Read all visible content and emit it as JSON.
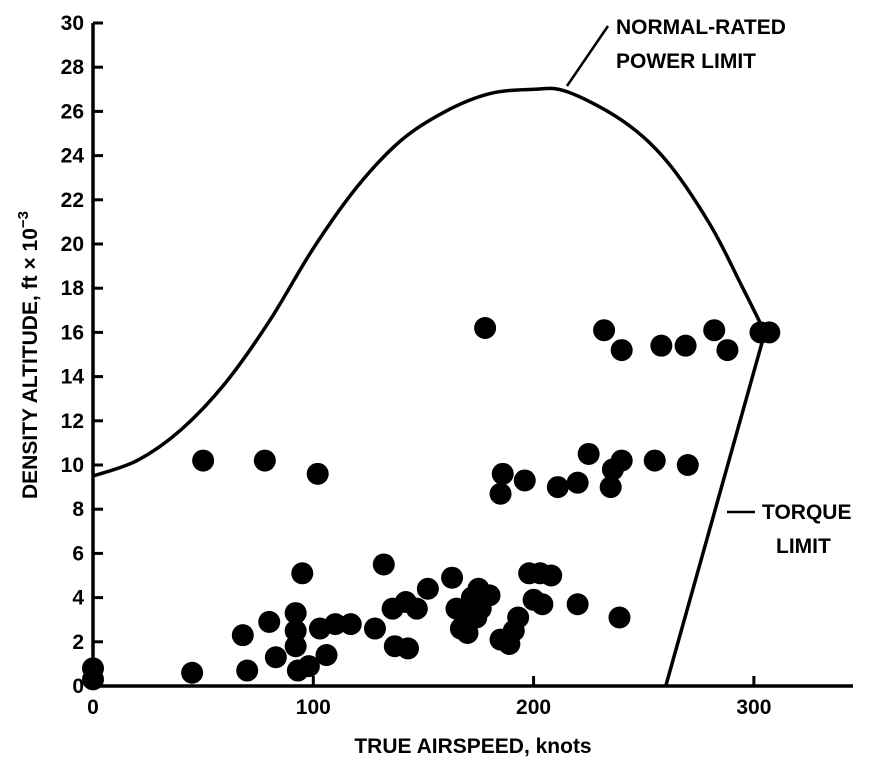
{
  "chart_data": {
    "type": "scatter",
    "xlabel": "TRUE AIRSPEED, knots",
    "ylabel": "DENSITY ALTITUDE, ft × 10",
    "ylabel_exponent": "−3",
    "xlim": [
      0,
      345
    ],
    "ylim": [
      0,
      30
    ],
    "xticks": [
      0,
      100,
      200,
      300
    ],
    "xtick_labels": [
      "0",
      "100",
      "200",
      "300"
    ],
    "yticks": [
      0,
      2,
      4,
      6,
      8,
      10,
      12,
      14,
      16,
      18,
      20,
      22,
      24,
      26,
      28,
      30
    ],
    "ytick_labels": [
      "0",
      "2",
      "4",
      "6",
      "8",
      "10",
      "12",
      "14",
      "16",
      "18",
      "20",
      "22",
      "24",
      "26",
      "28",
      "30"
    ],
    "grid": false,
    "annotations": {
      "power_limit_line1": "NORMAL-RATED",
      "power_limit_line2": "POWER LIMIT",
      "torque_limit_line1": "TORQUE",
      "torque_limit_line2": "LIMIT"
    },
    "power_limit_curve": [
      [
        0,
        9.5
      ],
      [
        20,
        10.2
      ],
      [
        40,
        11.6
      ],
      [
        60,
        13.7
      ],
      [
        80,
        16.5
      ],
      [
        100,
        19.8
      ],
      [
        120,
        22.6
      ],
      [
        140,
        24.7
      ],
      [
        160,
        26.0
      ],
      [
        180,
        26.8
      ],
      [
        200,
        27.0
      ],
      [
        215,
        26.9
      ],
      [
        240,
        25.6
      ],
      [
        260,
        23.8
      ],
      [
        280,
        20.9
      ],
      [
        295,
        18.0
      ],
      [
        305,
        16.0
      ]
    ],
    "torque_limit_line": [
      [
        305,
        16.0
      ],
      [
        260,
        0
      ]
    ],
    "points": [
      {
        "x": 0,
        "y": 0.3
      },
      {
        "x": 0,
        "y": 0.8
      },
      {
        "x": 45,
        "y": 0.6
      },
      {
        "x": 50,
        "y": 10.2
      },
      {
        "x": 68,
        "y": 2.3
      },
      {
        "x": 70,
        "y": 0.7
      },
      {
        "x": 78,
        "y": 10.2
      },
      {
        "x": 80,
        "y": 2.9
      },
      {
        "x": 83,
        "y": 1.3
      },
      {
        "x": 92,
        "y": 3.3
      },
      {
        "x": 92,
        "y": 2.5
      },
      {
        "x": 92,
        "y": 1.8
      },
      {
        "x": 93,
        "y": 0.7
      },
      {
        "x": 95,
        "y": 5.1
      },
      {
        "x": 98,
        "y": 0.9
      },
      {
        "x": 102,
        "y": 9.6
      },
      {
        "x": 103,
        "y": 2.6
      },
      {
        "x": 106,
        "y": 1.4
      },
      {
        "x": 110,
        "y": 2.8
      },
      {
        "x": 117,
        "y": 2.8
      },
      {
        "x": 128,
        "y": 2.6
      },
      {
        "x": 132,
        "y": 5.5
      },
      {
        "x": 136,
        "y": 3.5
      },
      {
        "x": 137,
        "y": 1.8
      },
      {
        "x": 142,
        "y": 3.8
      },
      {
        "x": 143,
        "y": 1.7
      },
      {
        "x": 147,
        "y": 3.5
      },
      {
        "x": 152,
        "y": 4.4
      },
      {
        "x": 163,
        "y": 4.9
      },
      {
        "x": 165,
        "y": 3.5
      },
      {
        "x": 167,
        "y": 2.6
      },
      {
        "x": 169,
        "y": 3.2
      },
      {
        "x": 170,
        "y": 2.4
      },
      {
        "x": 172,
        "y": 4.0
      },
      {
        "x": 174,
        "y": 3.1
      },
      {
        "x": 175,
        "y": 4.4
      },
      {
        "x": 176,
        "y": 3.5
      },
      {
        "x": 178,
        "y": 16.2
      },
      {
        "x": 180,
        "y": 4.1
      },
      {
        "x": 185,
        "y": 2.1
      },
      {
        "x": 185,
        "y": 8.7
      },
      {
        "x": 186,
        "y": 9.6
      },
      {
        "x": 189,
        "y": 1.9
      },
      {
        "x": 191,
        "y": 2.5
      },
      {
        "x": 193,
        "y": 3.1
      },
      {
        "x": 196,
        "y": 9.3
      },
      {
        "x": 198,
        "y": 5.1
      },
      {
        "x": 200,
        "y": 3.9
      },
      {
        "x": 203,
        "y": 5.1
      },
      {
        "x": 204,
        "y": 3.7
      },
      {
        "x": 208,
        "y": 5.0
      },
      {
        "x": 211,
        "y": 9.0
      },
      {
        "x": 220,
        "y": 9.2
      },
      {
        "x": 220,
        "y": 3.7
      },
      {
        "x": 225,
        "y": 10.5
      },
      {
        "x": 232,
        "y": 16.1
      },
      {
        "x": 235,
        "y": 9.0
      },
      {
        "x": 236,
        "y": 9.8
      },
      {
        "x": 239,
        "y": 3.1
      },
      {
        "x": 240,
        "y": 15.2
      },
      {
        "x": 240,
        "y": 10.2
      },
      {
        "x": 255,
        "y": 10.2
      },
      {
        "x": 258,
        "y": 15.4
      },
      {
        "x": 269,
        "y": 15.4
      },
      {
        "x": 270,
        "y": 10.0
      },
      {
        "x": 282,
        "y": 16.1
      },
      {
        "x": 288,
        "y": 15.2
      },
      {
        "x": 303,
        "y": 16.0
      },
      {
        "x": 307,
        "y": 16.0
      }
    ]
  }
}
